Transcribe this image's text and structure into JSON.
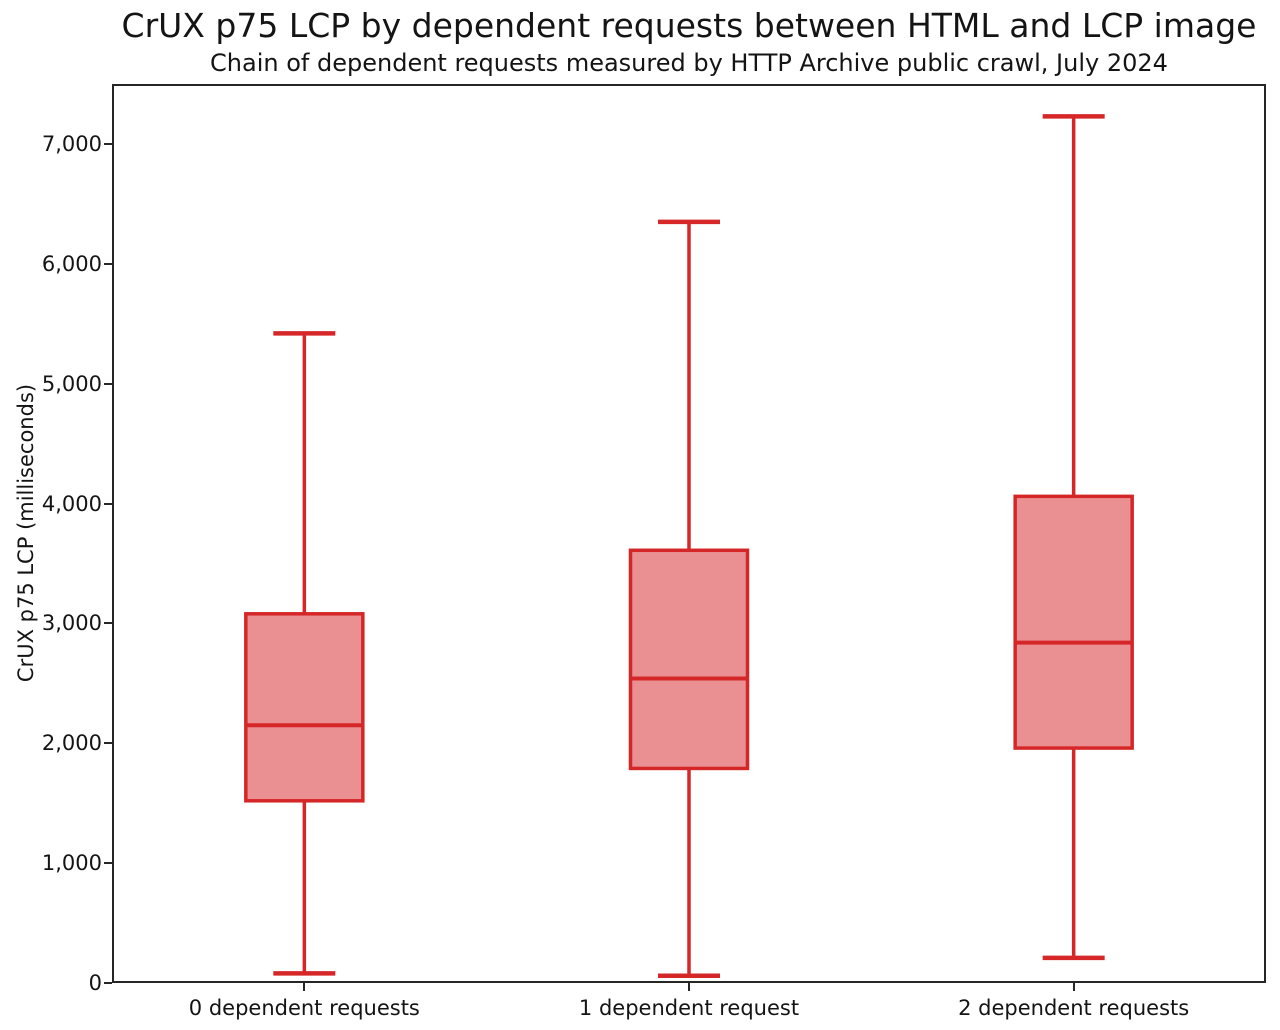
{
  "colors": {
    "box_edge": "#d62728",
    "box_fill": "#ea9093",
    "axis": "#262626",
    "text": "#141414",
    "background": "#ffffff"
  },
  "chart_data": {
    "type": "boxplot",
    "title": "CrUX p75 LCP by dependent requests between HTML and LCP image",
    "subtitle": "Chain of dependent requests measured by HTTP Archive public crawl, July 2024",
    "xlabel": "",
    "ylabel": "CrUX p75 LCP (milliseconds)",
    "ylim": [
      0,
      7500
    ],
    "grid": false,
    "yticks": [
      {
        "value": 0,
        "label": "0"
      },
      {
        "value": 1000,
        "label": "1,000"
      },
      {
        "value": 2000,
        "label": "2,000"
      },
      {
        "value": 3000,
        "label": "3,000"
      },
      {
        "value": 4000,
        "label": "4,000"
      },
      {
        "value": 5000,
        "label": "5,000"
      },
      {
        "value": 6000,
        "label": "6,000"
      },
      {
        "value": 7000,
        "label": "7,000"
      }
    ],
    "categories": [
      "0 dependent requests",
      "1 dependent request",
      "2 dependent requests"
    ],
    "series": [
      {
        "category": "0 dependent requests",
        "whisker_low": 80,
        "q1": 1520,
        "median": 2150,
        "q3": 3080,
        "whisker_high": 5420
      },
      {
        "category": "1 dependent request",
        "whisker_low": 60,
        "q1": 1790,
        "median": 2540,
        "q3": 3610,
        "whisker_high": 6350
      },
      {
        "category": "2 dependent requests",
        "whisker_low": 210,
        "q1": 1960,
        "median": 2840,
        "q3": 4060,
        "whisker_high": 7230
      }
    ]
  }
}
